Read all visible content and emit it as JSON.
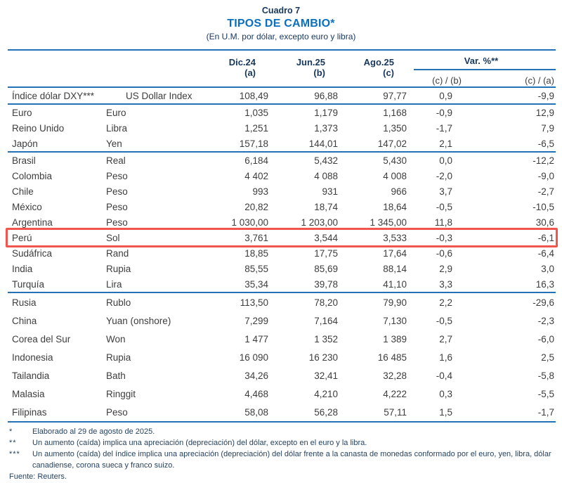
{
  "page": {
    "table_number": "Cuadro 7",
    "title": "TIPOS DE CAMBIO*",
    "subtitle": "(En U.M. por dólar, excepto euro y libra)"
  },
  "table": {
    "period_columns": [
      {
        "label": "Dic.24",
        "sub": "(a)"
      },
      {
        "label": "Jun.25",
        "sub": "(b)"
      },
      {
        "label": "Ago.25",
        "sub": "(c)"
      }
    ],
    "var_group": {
      "label": "Var. %**",
      "sub_columns": [
        "(c) / (b)",
        "(c) / (a)"
      ]
    },
    "rows": [
      {
        "country": "Índice dólar DXY***",
        "currency": "US Dollar Index",
        "a": "108,49",
        "b": "96,88",
        "c": "97,77",
        "var_cb": "0,9",
        "var_ca": "-9,9",
        "rule_after": true,
        "indent_currency": true
      },
      {
        "country": "Euro",
        "currency": "Euro",
        "a": "1,035",
        "b": "1,179",
        "c": "1,168",
        "var_cb": "-0,9",
        "var_ca": "12,9"
      },
      {
        "country": "Reino Unido",
        "currency": "Libra",
        "a": "1,251",
        "b": "1,373",
        "c": "1,350",
        "var_cb": "-1,7",
        "var_ca": "7,9"
      },
      {
        "country": "Japón",
        "currency": "Yen",
        "a": "157,18",
        "b": "144,01",
        "c": "147,02",
        "var_cb": "2,1",
        "var_ca": "-6,5",
        "rule_after": true
      },
      {
        "country": "Brasil",
        "currency": "Real",
        "a": "6,184",
        "b": "5,432",
        "c": "5,430",
        "var_cb": "0,0",
        "var_ca": "-12,2"
      },
      {
        "country": "Colombia",
        "currency": "Peso",
        "a": "4 402",
        "b": "4 088",
        "c": "4 008",
        "var_cb": "-2,0",
        "var_ca": "-9,0"
      },
      {
        "country": "Chile",
        "currency": "Peso",
        "a": "993",
        "b": "931",
        "c": "966",
        "var_cb": "3,7",
        "var_ca": "-2,7"
      },
      {
        "country": "México",
        "currency": "Peso",
        "a": "20,82",
        "b": "18,74",
        "c": "18,64",
        "var_cb": "-0,5",
        "var_ca": "-10,5"
      },
      {
        "country": "Argentina",
        "currency": "Peso",
        "a": "1 030,00",
        "b": "1 203,00",
        "c": "1 345,00",
        "var_cb": "11,8",
        "var_ca": "30,6"
      },
      {
        "country": "Perú",
        "currency": "Sol",
        "a": "3,761",
        "b": "3,544",
        "c": "3,533",
        "var_cb": "-0,3",
        "var_ca": "-6,1",
        "highlight": true
      },
      {
        "country": "Sudáfrica",
        "currency": "Rand",
        "a": "18,85",
        "b": "17,75",
        "c": "17,64",
        "var_cb": "-0,6",
        "var_ca": "-6,4"
      },
      {
        "country": "India",
        "currency": "Rupia",
        "a": "85,55",
        "b": "85,69",
        "c": "88,14",
        "var_cb": "2,9",
        "var_ca": "3,0"
      },
      {
        "country": "Turquía",
        "currency": "Lira",
        "a": "35,34",
        "b": "39,78",
        "c": "41,10",
        "var_cb": "3,3",
        "var_ca": "16,3",
        "rule_after": true
      },
      {
        "country": "Rusia",
        "currency": "Rublo",
        "a": "113,50",
        "b": "78,20",
        "c": "79,90",
        "var_cb": "2,2",
        "var_ca": "-29,6",
        "tall": true
      },
      {
        "country": "China",
        "currency": "Yuan (onshore)",
        "a": "7,299",
        "b": "7,164",
        "c": "7,130",
        "var_cb": "-0,5",
        "var_ca": "-2,3",
        "tall": true
      },
      {
        "country": "Corea del Sur",
        "currency": "Won",
        "a": "1 477",
        "b": "1 352",
        "c": "1 389",
        "var_cb": "2,7",
        "var_ca": "-6,0",
        "tall": true
      },
      {
        "country": "Indonesia",
        "currency": "Rupia",
        "a": "16 090",
        "b": "16 230",
        "c": "16 485",
        "var_cb": "1,6",
        "var_ca": "2,5",
        "tall": true
      },
      {
        "country": "Tailandia",
        "currency": "Bath",
        "a": "34,26",
        "b": "32,41",
        "c": "32,28",
        "var_cb": "-0,4",
        "var_ca": "-5,8",
        "tall": true
      },
      {
        "country": "Malasia",
        "currency": "Ringgit",
        "a": "4,468",
        "b": "4,210",
        "c": "4,222",
        "var_cb": "0,3",
        "var_ca": "-5,5",
        "tall": true
      },
      {
        "country": "Filipinas",
        "currency": "Peso",
        "a": "58,08",
        "b": "56,28",
        "c": "57,11",
        "var_cb": "1,5",
        "var_ca": "-1,7",
        "tall": true
      }
    ]
  },
  "footnotes": [
    {
      "marker": "*",
      "text": "Elaborado al 29 de agosto de 2025."
    },
    {
      "marker": "**",
      "text": "Un aumento (caída) implica una apreciación (depreciación) del dólar, excepto en el euro y la libra."
    },
    {
      "marker": "***",
      "text": "Un aumento (caída) del índice implica una apreciación (depreciación) del dólar frente a la canasta de monedas conformado por el euro, yen, libra, dólar canadiense, corona sueca y franco suizo."
    }
  ],
  "source": "Fuente: Reuters.",
  "colors": {
    "title_blue": "#0b6fc0",
    "navy": "#17375d",
    "rule_blue": "#2372b8",
    "highlight_red": "#f0564e",
    "body_text": "#3d3d3d"
  }
}
